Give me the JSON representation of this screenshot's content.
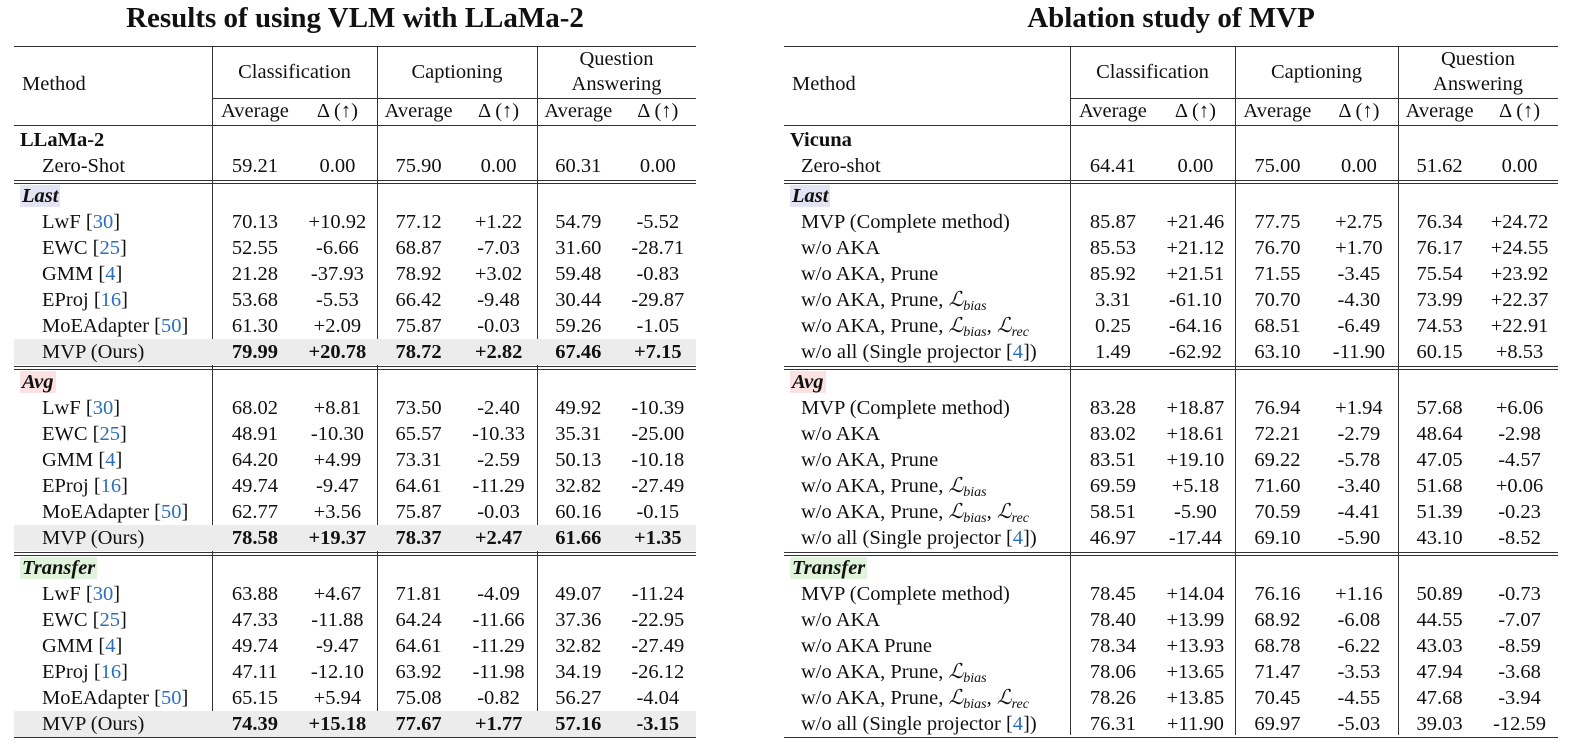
{
  "tables": [
    {
      "title": "Results of using VLM with LLaMa-2",
      "header": {
        "method": "Method",
        "groups": [
          "Classification",
          "Captioning",
          "Question Answering"
        ],
        "sub": [
          "Average",
          "Δ (↑)"
        ]
      },
      "sections": [
        {
          "label": "LLaMa-2",
          "rows": [
            {
              "method": [
                "Zero-Shot"
              ],
              "cells": [
                "59.21",
                "0.00",
                "75.90",
                "0.00",
                "60.31",
                "0.00"
              ]
            }
          ]
        },
        {
          "label": "Last",
          "background": "#e3e3f4",
          "rows": [
            {
              "method": [
                "LwF ",
                "[",
                {
                  "cite": "30"
                },
                "]"
              ],
              "cells": [
                "70.13",
                "+10.92",
                "77.12",
                "+1.22",
                "54.79",
                "-5.52"
              ]
            },
            {
              "method": [
                "EWC ",
                "[",
                {
                  "cite": "25"
                },
                "]"
              ],
              "cells": [
                "52.55",
                "-6.66",
                "68.87",
                "-7.03",
                "31.60",
                "-28.71"
              ]
            },
            {
              "method": [
                "GMM ",
                "[",
                {
                  "cite": "4"
                },
                "]"
              ],
              "cells": [
                "21.28",
                "-37.93",
                "78.92",
                "+3.02",
                "59.48",
                "-0.83"
              ]
            },
            {
              "method": [
                "EProj ",
                "[",
                {
                  "cite": "16"
                },
                "]"
              ],
              "cells": [
                "53.68",
                "-5.53",
                "66.42",
                "-9.48",
                "30.44",
                "-29.87"
              ]
            },
            {
              "method": [
                "MoEAdapter ",
                "[",
                {
                  "cite": "50"
                },
                "]"
              ],
              "cells": [
                "61.30",
                "+2.09",
                "75.87",
                "-0.03",
                "59.26",
                "-1.05"
              ]
            },
            {
              "method": [
                "MVP (Ours)"
              ],
              "cells": [
                "79.99",
                "+20.78",
                "78.72",
                "+2.82",
                "67.46",
                "+7.15"
              ],
              "highlight": true
            }
          ]
        },
        {
          "label": "Avg",
          "background": "#fbe1e1",
          "rows": [
            {
              "method": [
                "LwF ",
                "[",
                {
                  "cite": "30"
                },
                "]"
              ],
              "cells": [
                "68.02",
                "+8.81",
                "73.50",
                "-2.40",
                "49.92",
                "-10.39"
              ]
            },
            {
              "method": [
                "EWC ",
                "[",
                {
                  "cite": "25"
                },
                "]"
              ],
              "cells": [
                "48.91",
                "-10.30",
                "65.57",
                "-10.33",
                "35.31",
                "-25.00"
              ]
            },
            {
              "method": [
                "GMM ",
                "[",
                {
                  "cite": "4"
                },
                "]"
              ],
              "cells": [
                "64.20",
                "+4.99",
                "73.31",
                "-2.59",
                "50.13",
                "-10.18"
              ]
            },
            {
              "method": [
                "EProj ",
                "[",
                {
                  "cite": "16"
                },
                "]"
              ],
              "cells": [
                "49.74",
                "-9.47",
                "64.61",
                "-11.29",
                "32.82",
                "-27.49"
              ]
            },
            {
              "method": [
                "MoEAdapter ",
                "[",
                {
                  "cite": "50"
                },
                "]"
              ],
              "cells": [
                "62.77",
                "+3.56",
                "75.87",
                "-0.03",
                "60.16",
                "-0.15"
              ]
            },
            {
              "method": [
                "MVP (Ours)"
              ],
              "cells": [
                "78.58",
                "+19.37",
                "78.37",
                "+2.47",
                "61.66",
                "+1.35"
              ],
              "highlight": true
            }
          ]
        },
        {
          "label": "Transfer",
          "background": "#dff4da",
          "rows": [
            {
              "method": [
                "LwF ",
                "[",
                {
                  "cite": "30"
                },
                "]"
              ],
              "cells": [
                "63.88",
                "+4.67",
                "71.81",
                "-4.09",
                "49.07",
                "-11.24"
              ]
            },
            {
              "method": [
                "EWC ",
                "[",
                {
                  "cite": "25"
                },
                "]"
              ],
              "cells": [
                "47.33",
                "-11.88",
                "64.24",
                "-11.66",
                "37.36",
                "-22.95"
              ]
            },
            {
              "method": [
                "GMM ",
                "[",
                {
                  "cite": "4"
                },
                "]"
              ],
              "cells": [
                "49.74",
                "-9.47",
                "64.61",
                "-11.29",
                "32.82",
                "-27.49"
              ]
            },
            {
              "method": [
                "EProj ",
                "[",
                {
                  "cite": "16"
                },
                "]"
              ],
              "cells": [
                "47.11",
                "-12.10",
                "63.92",
                "-11.98",
                "34.19",
                "-26.12"
              ]
            },
            {
              "method": [
                "MoEAdapter ",
                "[",
                {
                  "cite": "50"
                },
                "]"
              ],
              "cells": [
                "65.15",
                "+5.94",
                "75.08",
                "-0.82",
                "56.27",
                "-4.04"
              ]
            },
            {
              "method": [
                "MVP (Ours)"
              ],
              "cells": [
                "74.39",
                "+15.18",
                "77.67",
                "+1.77",
                "57.16",
                "-3.15"
              ],
              "highlight": true
            }
          ]
        }
      ]
    },
    {
      "title": "Ablation study of MVP",
      "header": {
        "method": "Method",
        "groups": [
          "Classification",
          "Captioning",
          "Question Answering"
        ],
        "sub": [
          "Average",
          "Δ (↑)"
        ]
      },
      "sections": [
        {
          "label": "Vicuna",
          "rows": [
            {
              "method": [
                "Zero-shot"
              ],
              "cells": [
                "64.41",
                "0.00",
                "75.00",
                "0.00",
                "51.62",
                "0.00"
              ]
            }
          ]
        },
        {
          "label": "Last",
          "background": "#e3e3f4",
          "rows": [
            {
              "method": [
                "MVP (Complete method)"
              ],
              "cells": [
                "85.87",
                "+21.46",
                "77.75",
                "+2.75",
                "76.34",
                "+24.72"
              ]
            },
            {
              "method": [
                "w/o AKA"
              ],
              "cells": [
                "85.53",
                "+21.12",
                "76.70",
                "+1.70",
                "76.17",
                "+24.55"
              ]
            },
            {
              "method": [
                "w/o AKA, Prune"
              ],
              "cells": [
                "85.92",
                "+21.51",
                "71.55",
                "-3.45",
                "75.54",
                "+23.92"
              ]
            },
            {
              "method": [
                "w/o AKA, Prune, ",
                {
                  "sym": "ℒ",
                  "sub": "bias"
                }
              ],
              "cells": [
                "3.31",
                "-61.10",
                "70.70",
                "-4.30",
                "73.99",
                "+22.37"
              ]
            },
            {
              "method": [
                "w/o AKA, Prune, ",
                {
                  "sym": "ℒ",
                  "sub": "bias"
                },
                ", ",
                {
                  "sym": "ℒ",
                  "sub": "rec"
                }
              ],
              "cells": [
                "0.25",
                "-64.16",
                "68.51",
                "-6.49",
                "74.53",
                "+22.91"
              ]
            },
            {
              "method": [
                "w/o all (Single projector ",
                "[",
                {
                  "cite": "4"
                },
                "])"
              ],
              "cells": [
                "1.49",
                "-62.92",
                "63.10",
                "-11.90",
                "60.15",
                "+8.53"
              ]
            }
          ]
        },
        {
          "label": "Avg",
          "background": "#fbe1e1",
          "rows": [
            {
              "method": [
                "MVP (Complete method)"
              ],
              "cells": [
                "83.28",
                "+18.87",
                "76.94",
                "+1.94",
                "57.68",
                "+6.06"
              ]
            },
            {
              "method": [
                "w/o AKA"
              ],
              "cells": [
                "83.02",
                "+18.61",
                "72.21",
                "-2.79",
                "48.64",
                "-2.98"
              ]
            },
            {
              "method": [
                "w/o AKA, Prune"
              ],
              "cells": [
                "83.51",
                "+19.10",
                "69.22",
                "-5.78",
                "47.05",
                "-4.57"
              ]
            },
            {
              "method": [
                "w/o AKA, Prune, ",
                {
                  "sym": "ℒ",
                  "sub": "bias"
                }
              ],
              "cells": [
                "69.59",
                "+5.18",
                "71.60",
                "-3.40",
                "51.68",
                "+0.06"
              ]
            },
            {
              "method": [
                "w/o AKA, Prune, ",
                {
                  "sym": "ℒ",
                  "sub": "bias"
                },
                ", ",
                {
                  "sym": "ℒ",
                  "sub": "rec"
                }
              ],
              "cells": [
                "58.51",
                "-5.90",
                "70.59",
                "-4.41",
                "51.39",
                "-0.23"
              ]
            },
            {
              "method": [
                "w/o all (Single projector ",
                "[",
                {
                  "cite": "4"
                },
                "])"
              ],
              "cells": [
                "46.97",
                "-17.44",
                "69.10",
                "-5.90",
                "43.10",
                "-8.52"
              ]
            }
          ]
        },
        {
          "label": "Transfer",
          "background": "#dff4da",
          "rows": [
            {
              "method": [
                "MVP (Complete method)"
              ],
              "cells": [
                "78.45",
                "+14.04",
                "76.16",
                "+1.16",
                "50.89",
                "-0.73"
              ]
            },
            {
              "method": [
                "w/o AKA"
              ],
              "cells": [
                "78.40",
                "+13.99",
                "68.92",
                "-6.08",
                "44.55",
                "-7.07"
              ]
            },
            {
              "method": [
                "w/o AKA Prune"
              ],
              "cells": [
                "78.34",
                "+13.93",
                "68.78",
                "-6.22",
                "43.03",
                "-8.59"
              ]
            },
            {
              "method": [
                "w/o AKA, Prune, ",
                {
                  "sym": "ℒ",
                  "sub": "bias"
                }
              ],
              "cells": [
                "78.06",
                "+13.65",
                "71.47",
                "-3.53",
                "47.94",
                "-3.68"
              ]
            },
            {
              "method": [
                "w/o AKA, Prune, ",
                {
                  "sym": "ℒ",
                  "sub": "bias"
                },
                ", ",
                {
                  "sym": "ℒ",
                  "sub": "rec"
                }
              ],
              "cells": [
                "78.26",
                "+13.85",
                "70.45",
                "-4.55",
                "47.68",
                "-3.94"
              ]
            },
            {
              "method": [
                "w/o all (Single projector ",
                "[",
                {
                  "cite": "4"
                },
                "])"
              ],
              "cells": [
                "76.31",
                "+11.90",
                "69.97",
                "-5.03",
                "39.03",
                "-12.59"
              ]
            }
          ]
        }
      ]
    }
  ]
}
